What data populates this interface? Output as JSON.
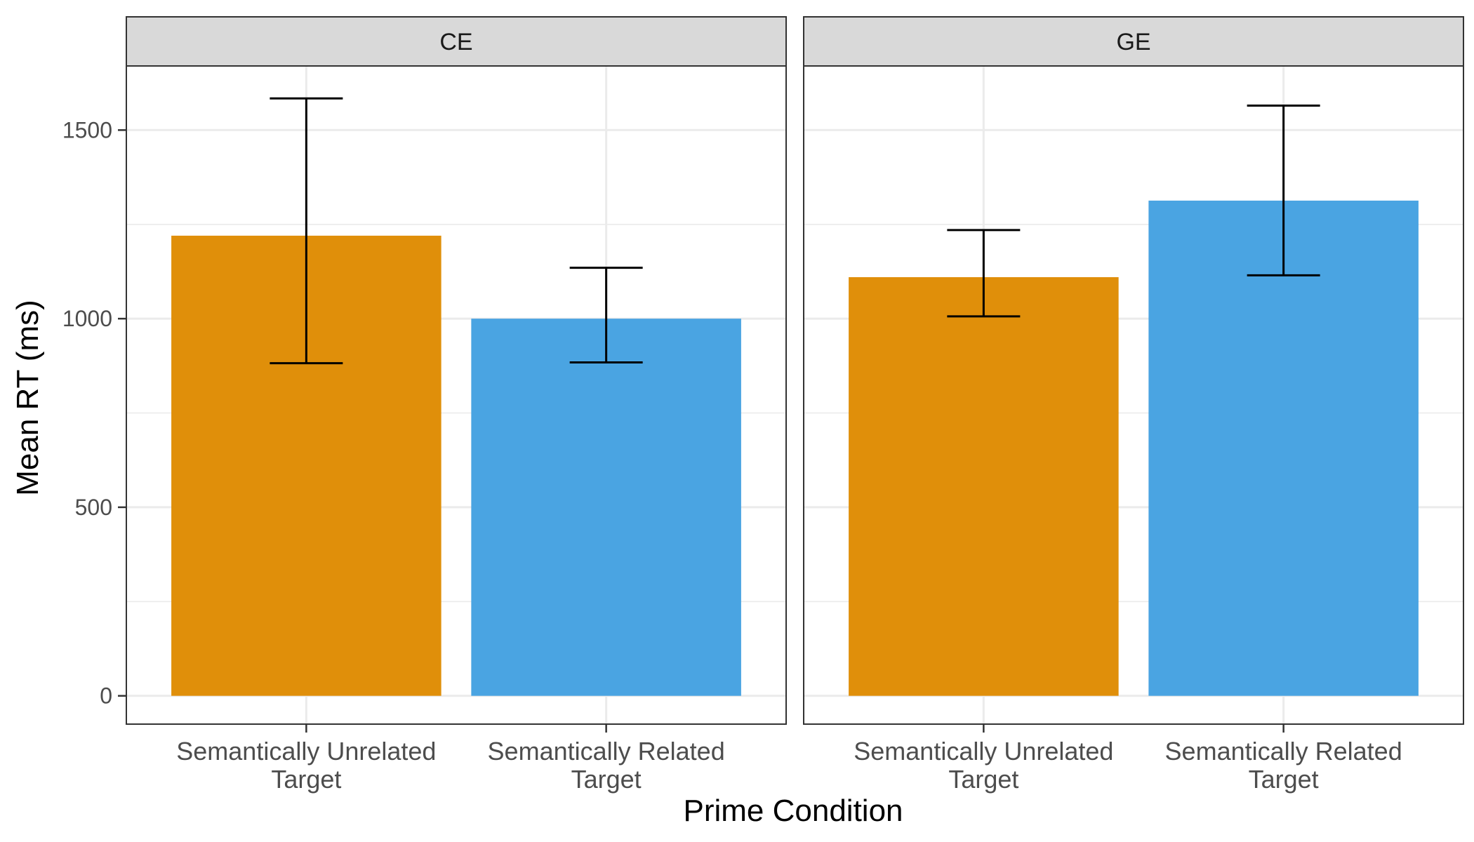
{
  "chart_data": {
    "type": "bar",
    "xlabel": "Prime Condition",
    "ylabel": "Mean RT (ms)",
    "ylim": [
      -75,
      1670
    ],
    "yticks": [
      0,
      500,
      1000,
      1500
    ],
    "grid": true,
    "legend": "none",
    "categories": [
      [
        "Semantically Unrelated",
        "Target"
      ],
      [
        "Semantically Related",
        "Target"
      ]
    ],
    "colors": [
      "#E08F0A",
      "#4AA4E2"
    ],
    "facets": [
      {
        "label": "CE",
        "values": [
          1220,
          1000
        ],
        "error_low": [
          882,
          884
        ],
        "error_high": [
          1584,
          1135
        ]
      },
      {
        "label": "GE",
        "values": [
          1110,
          1313
        ],
        "error_low": [
          1006,
          1115
        ],
        "error_high": [
          1235,
          1565
        ]
      }
    ]
  }
}
